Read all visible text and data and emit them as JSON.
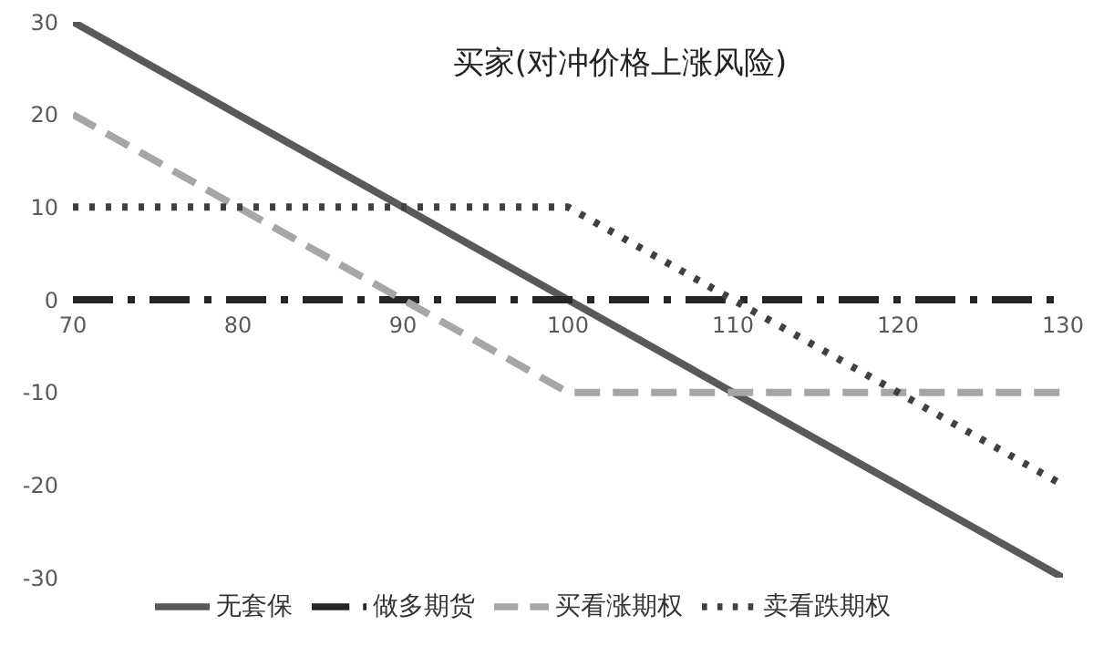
{
  "chart_data": {
    "type": "line",
    "title": "买家(对冲价格上涨风险)",
    "x": [
      70,
      80,
      90,
      100,
      110,
      120,
      130
    ],
    "series": [
      {
        "name": "无套保",
        "color": "#595959",
        "line_style": "solid",
        "values": [
          30,
          20,
          10,
          0,
          -10,
          -20,
          -30
        ]
      },
      {
        "name": "做多期货",
        "color": "#262626",
        "line_style": "dashdot",
        "values": [
          0,
          0,
          0,
          0,
          0,
          0,
          0
        ]
      },
      {
        "name": "买看涨期权",
        "color": "#a6a6a6",
        "line_style": "dashed",
        "values": [
          20,
          10,
          0,
          -10,
          -10,
          -10,
          -10
        ]
      },
      {
        "name": "卖看跌期权",
        "color": "#404040",
        "line_style": "dotted",
        "values": [
          10,
          10,
          10,
          10,
          0,
          -10,
          -20
        ]
      }
    ],
    "xlim": [
      70,
      130
    ],
    "xticks": [
      70,
      80,
      90,
      100,
      110,
      120,
      130
    ],
    "ylim": [
      -30,
      30
    ],
    "yticks": [
      -30,
      -20,
      -10,
      0,
      10,
      20,
      30
    ],
    "grid": false,
    "legend": "bottom",
    "marker": "none"
  }
}
